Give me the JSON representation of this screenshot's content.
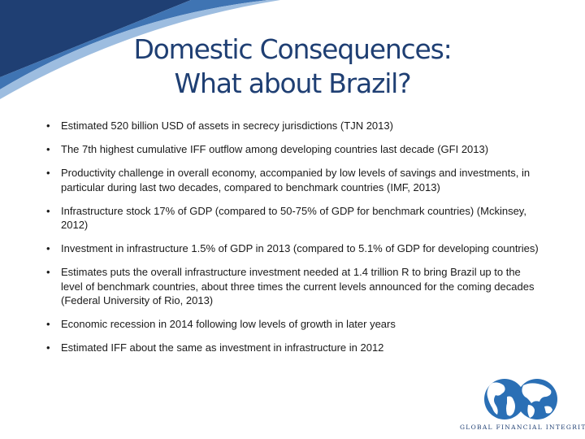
{
  "slide": {
    "title_line1": "Domestic Consequences:",
    "title_line2": "What about Brazil?",
    "bullets": [
      "Estimated 520 billion USD of assets in secrecy jurisdictions (TJN 2013)",
      "The 7th highest cumulative IFF outflow among developing countries last decade (GFI 2013)",
      "Productivity challenge in overall economy, accompanied by low levels of savings and investments, in particular during last two decades, compared to benchmark countries (IMF, 2013)",
      "Infrastructure stock 17% of GDP (compared to 50-75% of GDP for benchmark countries) (Mckinsey, 2012)",
      "Investment in infrastructure 1.5% of GDP in 2013 (compared to 5.1% of GDP for developing countries)",
      "Estimates puts the overall infrastructure investment needed at 1.4 trillion R to bring Brazil up to the level of benchmark countries, about three times the current levels announced for the coming decades (Federal University of Rio, 2013)",
      "Economic recession in 2014 following low levels of growth in later years",
      "Estimated IFF about the same as investment in infrastructure in 2012"
    ]
  },
  "logo": {
    "text": "Global Financial Integrity",
    "color": "#2a6fb5"
  },
  "theme": {
    "title_color": "#1f3f73",
    "corner_dark": "#1f3f73",
    "corner_light": "#5b8fc8"
  }
}
